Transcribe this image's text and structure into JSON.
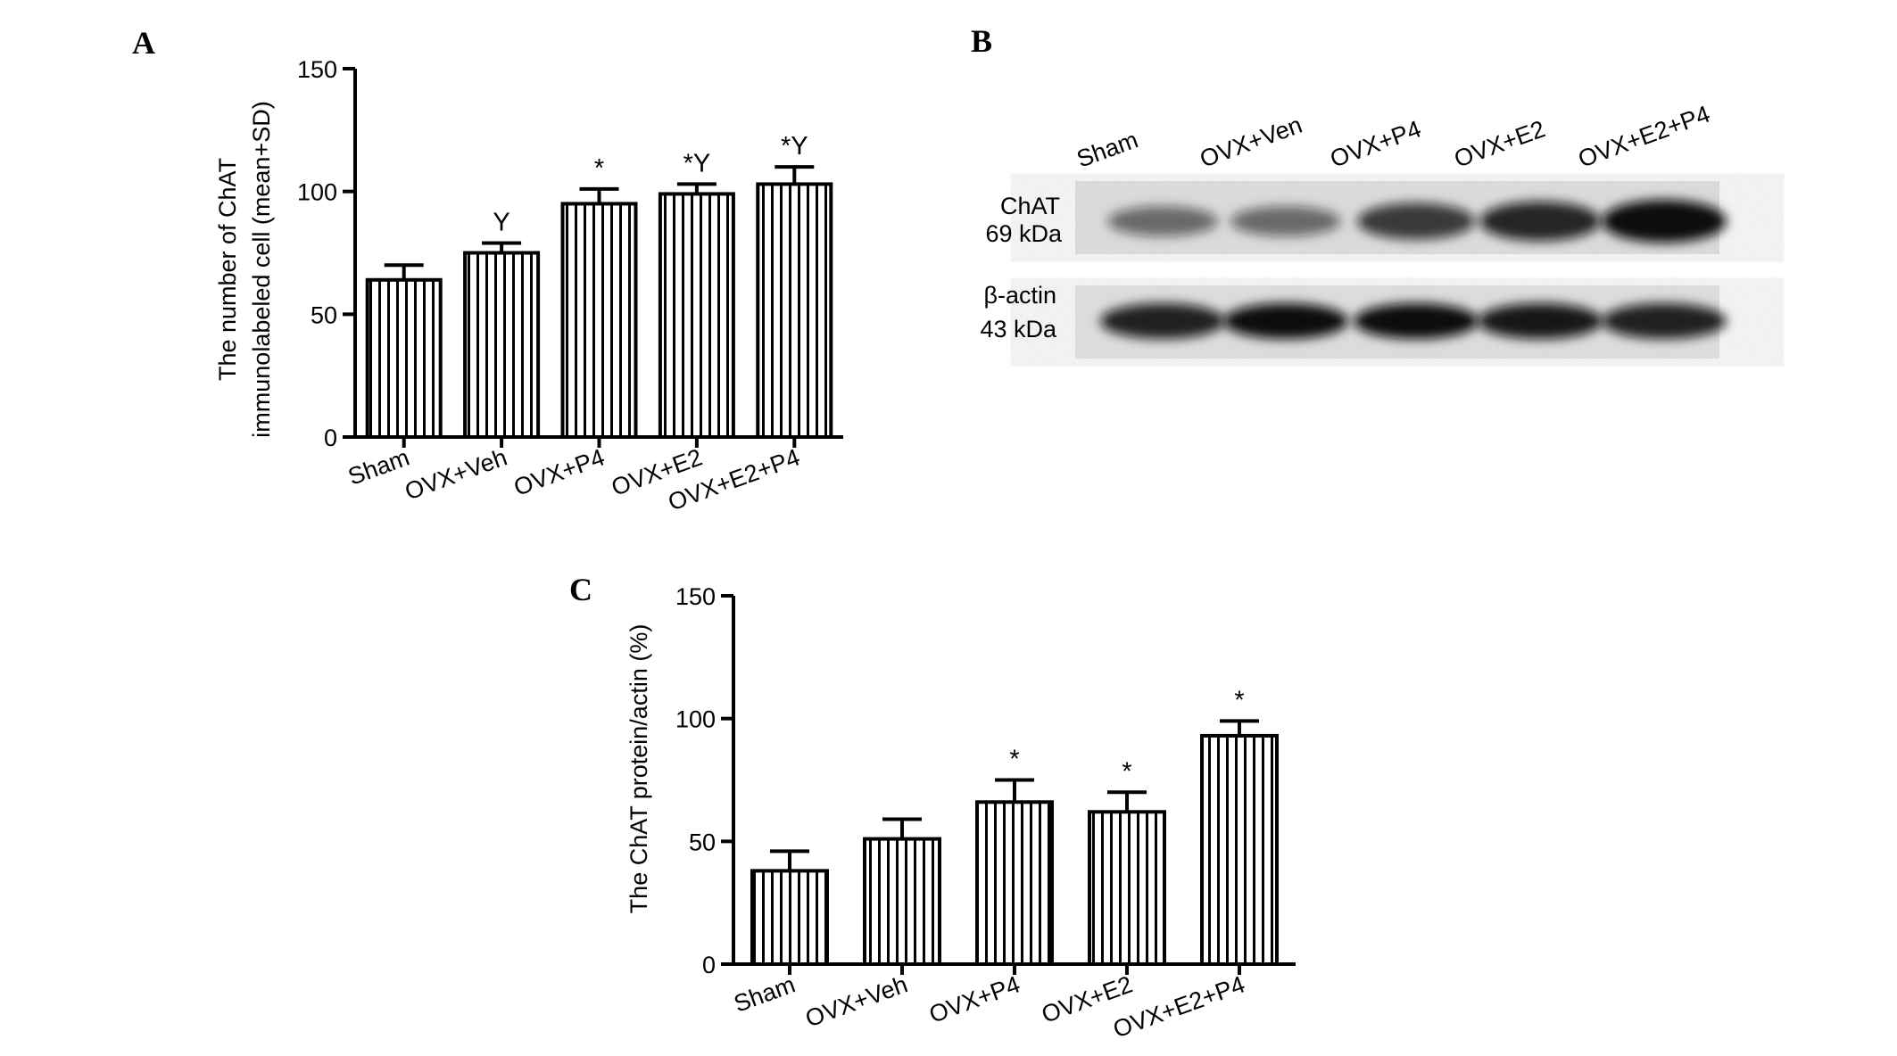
{
  "panel_labels": {
    "a": "A",
    "b": "B",
    "c": "C"
  },
  "chart_data": [
    {
      "panel": "A",
      "type": "bar",
      "ylabel_line1": "The number of ChAT",
      "ylabel_line2": "immunolabeled cell (mean+SD)",
      "ylim": [
        0,
        150
      ],
      "yticks": [
        0,
        50,
        100,
        150
      ],
      "categories": [
        "Sham",
        "OVX+Veh",
        "OVX+P4",
        "OVX+E2",
        "OVX+E2+P4"
      ],
      "values": [
        64,
        75,
        95,
        99,
        103
      ],
      "errors": [
        6,
        4,
        6,
        4,
        7
      ],
      "annotations": [
        "",
        "Y",
        "*",
        "*Y",
        "*Y"
      ]
    },
    {
      "panel": "C",
      "type": "bar",
      "ylabel": "The ChAT protein/actin  (%)",
      "ylim": [
        0,
        150
      ],
      "yticks": [
        0,
        50,
        100,
        150
      ],
      "categories": [
        "Sham",
        "OVX+Veh",
        "OVX+P4",
        "OVX+E2",
        "OVX+E2+P4"
      ],
      "values": [
        38,
        51,
        66,
        62,
        93
      ],
      "errors": [
        8,
        8,
        9,
        8,
        6
      ],
      "annotations": [
        "",
        "",
        "*",
        "*",
        "*"
      ]
    }
  ],
  "blot": {
    "lanes": [
      "Sham",
      "OVX+Ven",
      "OVX+P4",
      "OVX+E2",
      "OVX+E2+P4"
    ],
    "chat_label": "ChAT",
    "chat_kda": "69 kDa",
    "actin_label": "β-actin",
    "actin_kda": "43 kDa",
    "chat_intensity": [
      0.55,
      0.55,
      0.78,
      0.88,
      1.0
    ],
    "actin_intensity": [
      0.9,
      1.0,
      1.0,
      0.95,
      0.9
    ]
  }
}
